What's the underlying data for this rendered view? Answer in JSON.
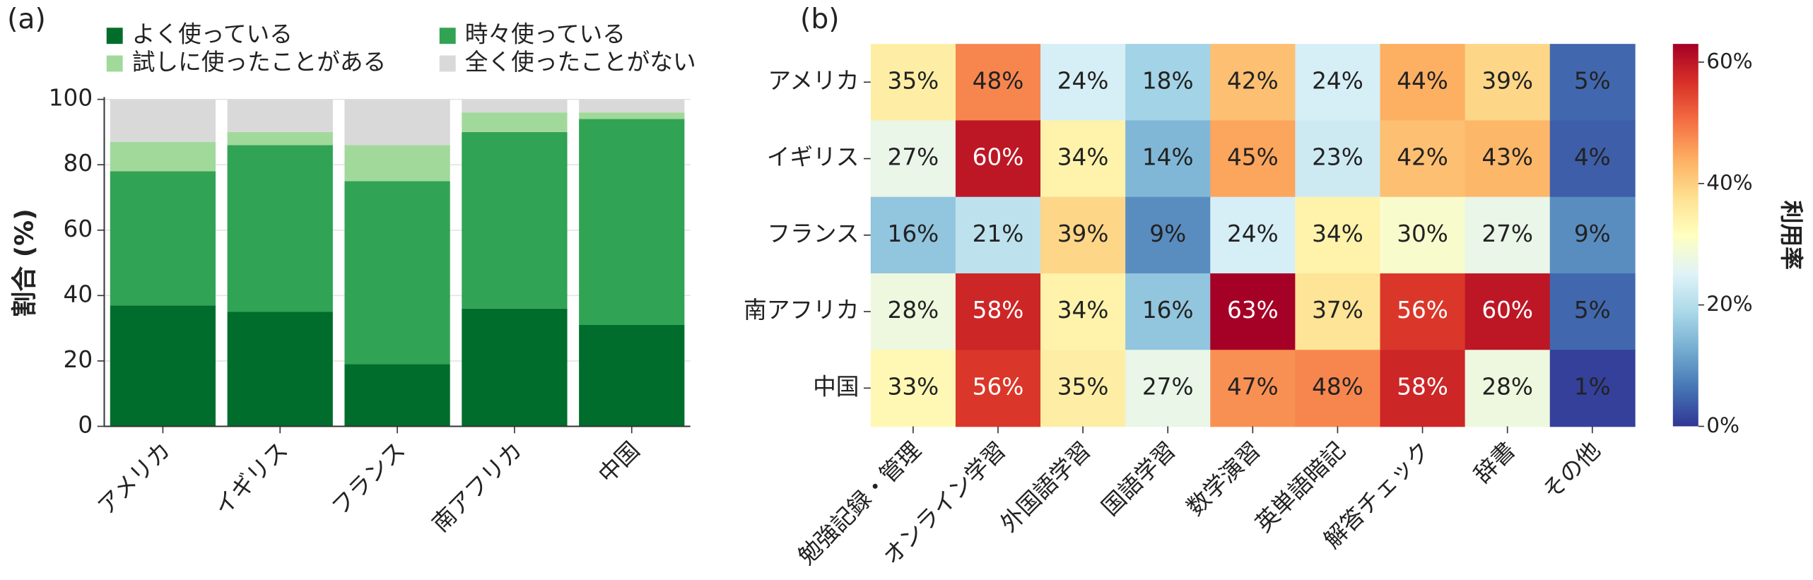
{
  "chart_data": [
    {
      "type": "bar",
      "stacked": true,
      "label": "(a)",
      "ylabel": "割合 (%)",
      "categories": [
        "アメリカ",
        "イギリス",
        "フランス",
        "南アフリカ",
        "中国"
      ],
      "series": [
        {
          "name": "よく使っている",
          "color": "#006d2c",
          "values": [
            37,
            35,
            19,
            36,
            31
          ]
        },
        {
          "name": "時々使っている",
          "color": "#31a354",
          "values": [
            41,
            51,
            56,
            54,
            63
          ]
        },
        {
          "name": "試しに使ったことがある",
          "color": "#a1d99b",
          "values": [
            9,
            4,
            11,
            6,
            2
          ]
        },
        {
          "name": "全く使ったことがない",
          "color": "#d9d9d9",
          "values": [
            13,
            10,
            14,
            4,
            4
          ]
        }
      ],
      "ylim": [
        0,
        100
      ],
      "yticks": [
        0,
        20,
        40,
        60,
        80,
        100
      ],
      "grid": true
    },
    {
      "type": "heatmap",
      "label": "(b)",
      "colorbar_label": "利用率",
      "colormap": "RdYlBu_r",
      "x": [
        "勉強記録・管理",
        "オンライン学習",
        "外国語学習",
        "国語学習",
        "数学演習",
        "英単語暗記",
        "解答チェック",
        "辞書",
        "その他"
      ],
      "y": [
        "アメリカ",
        "イギリス",
        "フランス",
        "南アフリカ",
        "中国"
      ],
      "values": [
        [
          35,
          48,
          24,
          18,
          42,
          24,
          44,
          39,
          5
        ],
        [
          27,
          60,
          34,
          14,
          45,
          23,
          42,
          43,
          4
        ],
        [
          16,
          21,
          39,
          9,
          24,
          34,
          30,
          27,
          9
        ],
        [
          28,
          58,
          34,
          16,
          63,
          37,
          56,
          60,
          5
        ],
        [
          33,
          56,
          35,
          27,
          47,
          48,
          58,
          28,
          1
        ]
      ],
      "value_labels": [
        [
          "35%",
          "48%",
          "24%",
          "18%",
          "42%",
          "24%",
          "44%",
          "39%",
          "5%"
        ],
        [
          "27%",
          "60%",
          "34%",
          "14%",
          "45%",
          "23%",
          "42%",
          "43%",
          "4%"
        ],
        [
          "16%",
          "21%",
          "39%",
          "9%",
          "24%",
          "34%",
          "30%",
          "27%",
          "9%"
        ],
        [
          "28%",
          "58%",
          "34%",
          "16%",
          "63%",
          "37%",
          "56%",
          "60%",
          "5%"
        ],
        [
          "33%",
          "56%",
          "35%",
          "27%",
          "47%",
          "48%",
          "58%",
          "28%",
          "1%"
        ]
      ],
      "clim": [
        0,
        63
      ],
      "cticks": [
        {
          "value": 0,
          "label": "0%"
        },
        {
          "value": 20,
          "label": "20%"
        },
        {
          "value": 40,
          "label": "40%"
        },
        {
          "value": 60,
          "label": "60%"
        }
      ]
    }
  ]
}
